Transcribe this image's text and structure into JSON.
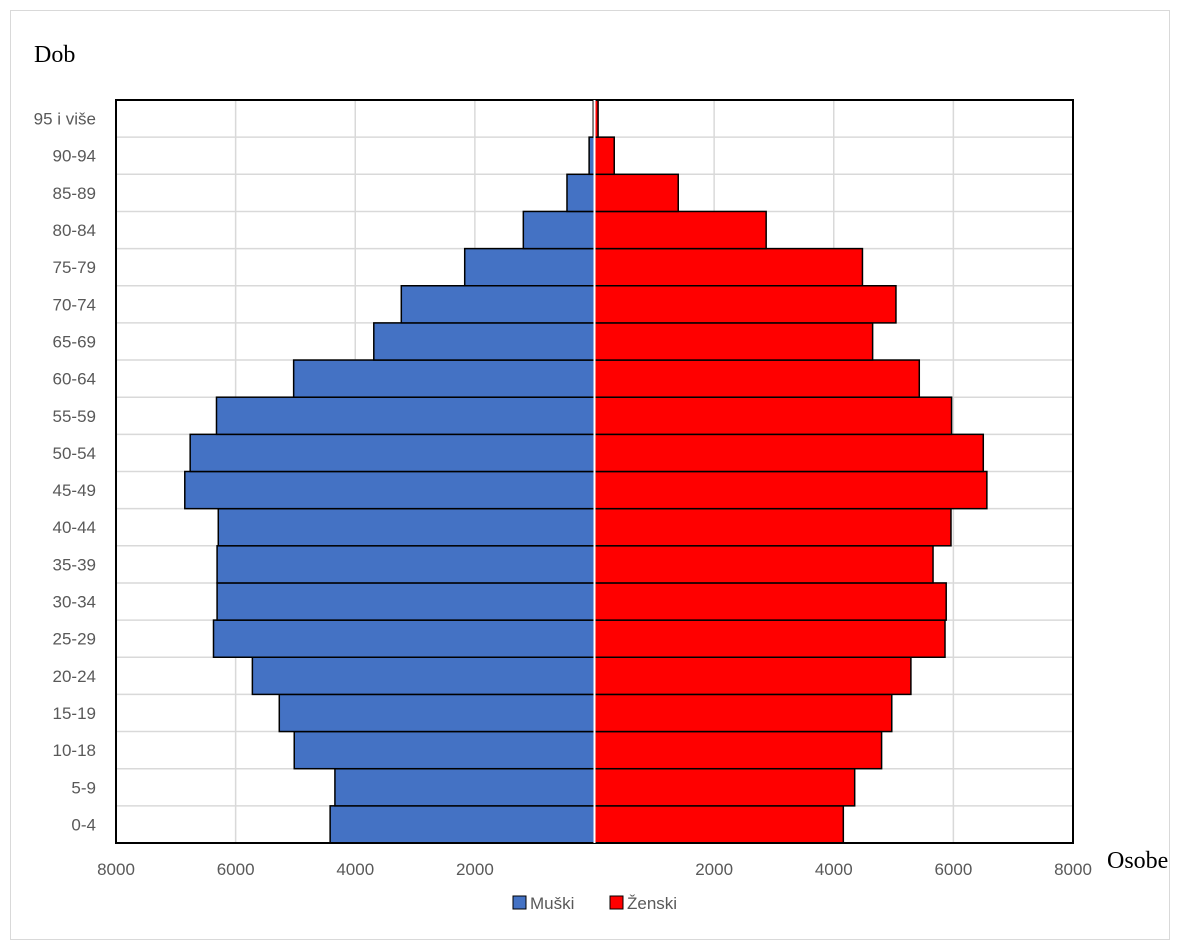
{
  "chart_data": {
    "type": "bar",
    "orientation": "horizontal",
    "subtype": "population-pyramid",
    "title": "",
    "ylabel": "Dob",
    "xlabel": "Osobe",
    "categories": [
      "0-4",
      "5-9",
      "10-18",
      "15-19",
      "20-24",
      "25-29",
      "30-34",
      "35-39",
      "40-44",
      "45-49",
      "50-54",
      "55-59",
      "60-64",
      "65-69",
      "70-74",
      "75-79",
      "80-84",
      "85-89",
      "90-94",
      "95 i više"
    ],
    "series": [
      {
        "name": "Muški",
        "side": "left",
        "color": "#4472c4",
        "values": [
          4420,
          4340,
          5020,
          5270,
          5720,
          6370,
          6310,
          6310,
          6290,
          6850,
          6760,
          6320,
          5030,
          3690,
          3230,
          2170,
          1190,
          460,
          90,
          20
        ]
      },
      {
        "name": "Ženski",
        "side": "right",
        "color": "#ff0000",
        "values": [
          4160,
          4350,
          4800,
          4970,
          5290,
          5860,
          5880,
          5660,
          5960,
          6560,
          6500,
          5970,
          5430,
          4650,
          5040,
          4480,
          2870,
          1400,
          330,
          60
        ]
      }
    ],
    "xlim": [
      -8000,
      8000
    ],
    "x_ticks": [
      "8000",
      "6000",
      "4000",
      "2000",
      "",
      "2000",
      "4000",
      "6000",
      "8000"
    ],
    "grid": true,
    "legend": "bottom"
  }
}
